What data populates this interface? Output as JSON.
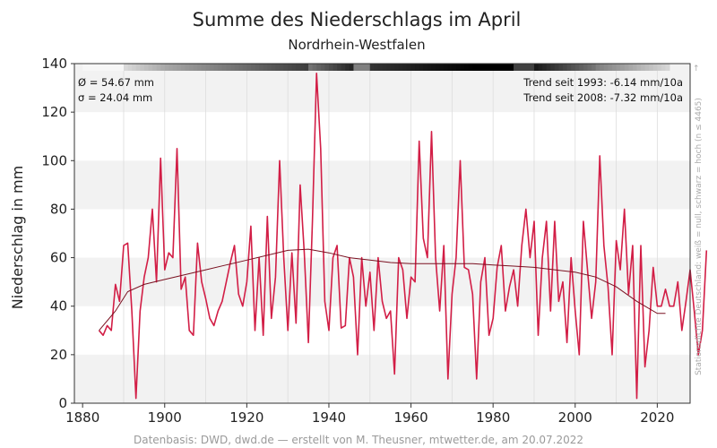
{
  "chart_data": {
    "type": "line",
    "title": "Summe des Niederschlags im April",
    "subtitle": "Nordrhein-Westfalen",
    "ylabel": "Niederschlag in mm",
    "xlabel": "",
    "xlim": [
      1878,
      2028
    ],
    "ylim": [
      0,
      140
    ],
    "xticks": [
      1880,
      1900,
      1920,
      1940,
      1960,
      1980,
      2000,
      2020
    ],
    "yticks": [
      0,
      20,
      40,
      60,
      80,
      100,
      120,
      140
    ],
    "grid": "horizontal bands and vertical lines",
    "colors": {
      "series": "#d21e46",
      "trend": "#7a1020",
      "band": "#f2f2f2",
      "grid": "#dddddd"
    },
    "stats": {
      "mean": "Ø = 54.67 mm",
      "sigma": "σ = 24.04 mm",
      "trend1993": "Trend seit 1993: -6.14 mm/10a",
      "trend2008": "Trend seit 2008: -7.32 mm/10a"
    },
    "x_start": 1884,
    "series": [
      {
        "values": [
          30,
          28,
          32,
          30,
          49,
          42,
          65,
          66,
          38,
          2,
          38,
          52,
          60,
          80,
          50,
          101,
          55,
          62,
          60,
          105,
          47,
          52,
          30,
          28,
          66,
          50,
          43,
          35,
          32,
          38,
          42,
          50,
          58,
          65,
          45,
          40,
          50,
          73,
          30,
          60,
          28,
          77,
          35,
          52,
          100,
          60,
          30,
          62,
          33,
          90,
          62,
          25,
          75,
          136,
          105,
          42,
          30,
          60,
          65,
          31,
          32,
          60,
          52,
          20,
          60,
          40,
          54,
          30,
          60,
          42,
          35,
          38,
          12,
          60,
          55,
          35,
          52,
          50,
          108,
          68,
          60,
          112,
          60,
          38,
          65,
          10,
          45,
          60,
          100,
          56,
          55,
          45,
          10,
          50,
          60,
          28,
          35,
          56,
          65,
          38,
          48,
          55,
          40,
          65,
          80,
          60,
          75,
          28,
          60,
          75,
          38,
          75,
          42,
          50,
          25,
          60,
          38,
          20,
          75,
          55,
          35,
          50,
          102,
          65,
          48,
          20,
          67,
          55,
          80,
          45,
          65,
          2,
          65,
          15,
          30,
          56,
          40,
          40,
          47,
          40,
          40,
          50,
          30,
          42,
          55,
          38,
          20,
          30,
          63
        ],
        "trend": [
          [
            1884,
            30
          ],
          [
            1888,
            38
          ],
          [
            1891,
            46
          ],
          [
            1895,
            49
          ],
          [
            1900,
            51
          ],
          [
            1905,
            53
          ],
          [
            1910,
            55
          ],
          [
            1915,
            57
          ],
          [
            1920,
            59
          ],
          [
            1925,
            61
          ],
          [
            1930,
            63
          ],
          [
            1935,
            63.5
          ],
          [
            1940,
            62
          ],
          [
            1945,
            60
          ],
          [
            1950,
            59
          ],
          [
            1955,
            58
          ],
          [
            1960,
            57.5
          ],
          [
            1965,
            57.5
          ],
          [
            1970,
            57.5
          ],
          [
            1975,
            57.5
          ],
          [
            1980,
            57
          ],
          [
            1985,
            56.5
          ],
          [
            1990,
            56
          ],
          [
            1995,
            55
          ],
          [
            2000,
            54
          ],
          [
            2005,
            52
          ],
          [
            2010,
            48
          ],
          [
            2015,
            42
          ],
          [
            2020,
            37
          ],
          [
            2022,
            37
          ]
        ]
      }
    ],
    "footer": "Datenbasis: DWD, dwd.de — erstellt von M. Theusner, mtwetter.de, am 20.07.2022",
    "sidenote": "Stationsdichte Deutschland: weiß = null, schwarz = hoch (n ≤ 4465)"
  }
}
